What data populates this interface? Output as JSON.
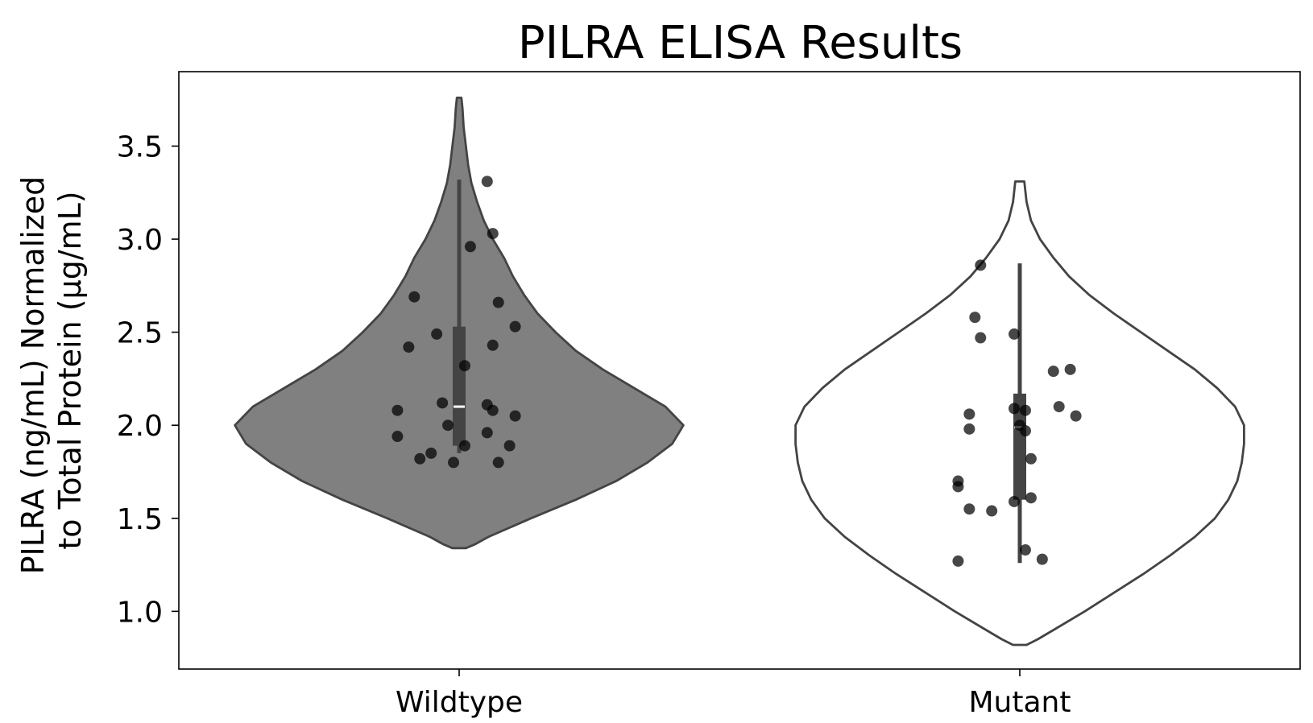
{
  "chart_data": {
    "type": "violin",
    "title": "PILRA ELISA Results",
    "xlabel": "",
    "ylabel_lines": [
      "PILRA (ng/mL) Normalized",
      "to Total Protein (µg/mL)"
    ],
    "ylim": [
      0.69,
      3.9
    ],
    "yticks": [
      1.0,
      1.5,
      2.0,
      2.5,
      3.0,
      3.5
    ],
    "ytick_labels": [
      "1.0",
      "1.5",
      "2.0",
      "2.5",
      "3.0",
      "3.5"
    ],
    "categories": [
      "Wildtype",
      "Mutant"
    ],
    "grid": false,
    "legend": "none",
    "groups": [
      {
        "category": "Wildtype",
        "fill_color": "#808080",
        "edge_color": "#444444",
        "whisker_low": 1.85,
        "whisker_high": 3.32,
        "q1": 1.89,
        "q3": 2.53,
        "median": 2.1,
        "violin_min": 1.34,
        "violin_max": 3.76,
        "violin_profile": [
          [
            1.34,
            0.03
          ],
          [
            1.36,
            0.07
          ],
          [
            1.4,
            0.13
          ],
          [
            1.5,
            0.32
          ],
          [
            1.6,
            0.52
          ],
          [
            1.7,
            0.7
          ],
          [
            1.8,
            0.84
          ],
          [
            1.9,
            0.95
          ],
          [
            2.0,
            1.0
          ],
          [
            2.1,
            0.92
          ],
          [
            2.2,
            0.78
          ],
          [
            2.3,
            0.64
          ],
          [
            2.4,
            0.52
          ],
          [
            2.5,
            0.43
          ],
          [
            2.6,
            0.35
          ],
          [
            2.7,
            0.29
          ],
          [
            2.8,
            0.24
          ],
          [
            2.9,
            0.2
          ],
          [
            3.0,
            0.15
          ],
          [
            3.1,
            0.11
          ],
          [
            3.2,
            0.08
          ],
          [
            3.3,
            0.055
          ],
          [
            3.4,
            0.04
          ],
          [
            3.5,
            0.03
          ],
          [
            3.6,
            0.02
          ],
          [
            3.7,
            0.015
          ],
          [
            3.76,
            0.01
          ]
        ],
        "points": [
          {
            "dx": 0.05,
            "y": 3.31
          },
          {
            "dx": 0.06,
            "y": 3.03
          },
          {
            "dx": 0.02,
            "y": 2.96
          },
          {
            "dx": -0.08,
            "y": 2.69
          },
          {
            "dx": 0.07,
            "y": 2.66
          },
          {
            "dx": 0.1,
            "y": 2.53
          },
          {
            "dx": -0.04,
            "y": 2.49
          },
          {
            "dx": -0.09,
            "y": 2.42
          },
          {
            "dx": 0.06,
            "y": 2.43
          },
          {
            "dx": 0.01,
            "y": 2.32
          },
          {
            "dx": -0.03,
            "y": 2.12
          },
          {
            "dx": 0.05,
            "y": 2.11
          },
          {
            "dx": -0.11,
            "y": 2.08
          },
          {
            "dx": 0.06,
            "y": 2.08
          },
          {
            "dx": 0.1,
            "y": 2.05
          },
          {
            "dx": -0.02,
            "y": 2.0
          },
          {
            "dx": 0.05,
            "y": 1.96
          },
          {
            "dx": -0.11,
            "y": 1.94
          },
          {
            "dx": 0.01,
            "y": 1.89
          },
          {
            "dx": 0.09,
            "y": 1.89
          },
          {
            "dx": -0.05,
            "y": 1.85
          },
          {
            "dx": -0.07,
            "y": 1.82
          },
          {
            "dx": -0.01,
            "y": 1.8
          },
          {
            "dx": 0.07,
            "y": 1.8
          }
        ]
      },
      {
        "category": "Mutant",
        "fill_color": "#ffffff",
        "edge_color": "#444444",
        "whisker_low": 1.26,
        "whisker_high": 2.87,
        "q1": 1.6,
        "q3": 2.17,
        "median": 1.99,
        "violin_min": 0.82,
        "violin_max": 3.31,
        "violin_profile": [
          [
            0.82,
            0.03
          ],
          [
            0.85,
            0.08
          ],
          [
            0.9,
            0.15
          ],
          [
            1.0,
            0.29
          ],
          [
            1.1,
            0.42
          ],
          [
            1.2,
            0.55
          ],
          [
            1.3,
            0.67
          ],
          [
            1.4,
            0.78
          ],
          [
            1.5,
            0.87
          ],
          [
            1.6,
            0.93
          ],
          [
            1.7,
            0.97
          ],
          [
            1.8,
            0.99
          ],
          [
            1.9,
            1.0
          ],
          [
            2.0,
            1.0
          ],
          [
            2.1,
            0.96
          ],
          [
            2.2,
            0.88
          ],
          [
            2.3,
            0.78
          ],
          [
            2.4,
            0.66
          ],
          [
            2.5,
            0.54
          ],
          [
            2.6,
            0.42
          ],
          [
            2.7,
            0.31
          ],
          [
            2.8,
            0.22
          ],
          [
            2.9,
            0.15
          ],
          [
            3.0,
            0.09
          ],
          [
            3.1,
            0.05
          ],
          [
            3.2,
            0.03
          ],
          [
            3.31,
            0.02
          ]
        ],
        "points": [
          {
            "dx": -0.07,
            "y": 2.86
          },
          {
            "dx": -0.08,
            "y": 2.58
          },
          {
            "dx": -0.01,
            "y": 2.49
          },
          {
            "dx": -0.07,
            "y": 2.47
          },
          {
            "dx": 0.09,
            "y": 2.3
          },
          {
            "dx": 0.06,
            "y": 2.29
          },
          {
            "dx": 0.07,
            "y": 2.1
          },
          {
            "dx": -0.01,
            "y": 2.09
          },
          {
            "dx": 0.01,
            "y": 2.08
          },
          {
            "dx": 0.1,
            "y": 2.05
          },
          {
            "dx": -0.09,
            "y": 2.06
          },
          {
            "dx": 0.0,
            "y": 2.0
          },
          {
            "dx": -0.09,
            "y": 1.98
          },
          {
            "dx": 0.01,
            "y": 1.97
          },
          {
            "dx": 0.02,
            "y": 1.82
          },
          {
            "dx": -0.11,
            "y": 1.7
          },
          {
            "dx": -0.11,
            "y": 1.67
          },
          {
            "dx": 0.02,
            "y": 1.61
          },
          {
            "dx": -0.01,
            "y": 1.59
          },
          {
            "dx": -0.09,
            "y": 1.55
          },
          {
            "dx": -0.05,
            "y": 1.54
          },
          {
            "dx": 0.01,
            "y": 1.33
          },
          {
            "dx": 0.04,
            "y": 1.28
          },
          {
            "dx": -0.11,
            "y": 1.27
          }
        ]
      }
    ]
  }
}
